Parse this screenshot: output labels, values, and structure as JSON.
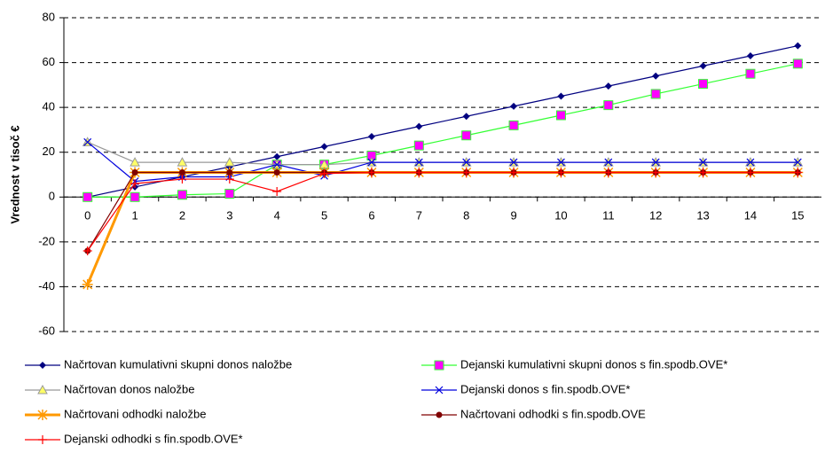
{
  "chart_data": {
    "type": "line",
    "y_label": "Vrednost v tisoč €",
    "categories": [
      "0",
      "1",
      "2",
      "3",
      "4",
      "5",
      "6",
      "7",
      "8",
      "9",
      "10",
      "11",
      "12",
      "13",
      "14",
      "15"
    ],
    "ylim": [
      -60,
      80
    ],
    "yticks": [
      -60,
      -40,
      -20,
      0,
      20,
      40,
      60,
      80
    ],
    "grid": true,
    "series": [
      {
        "name": "Načrtovan kumulativni skupni donos naložbe",
        "color": "#000080",
        "marker": "diamond",
        "values": [
          0,
          4.5,
          9,
          13.5,
          18,
          22.5,
          27,
          31.5,
          36,
          40.5,
          45,
          49.5,
          54,
          58.5,
          63,
          67.5
        ]
      },
      {
        "name": "Dejanski kumulativni skupni donos s fin.spodb.OVE*",
        "color": "#33ff33",
        "marker": "square",
        "marker_color": "#ff00ff",
        "values": [
          0,
          0,
          1,
          1.5,
          14.5,
          14.5,
          18.5,
          23,
          27.5,
          32,
          36.5,
          41,
          46,
          50.5,
          55,
          59.5
        ]
      },
      {
        "name": "Načrtovan donos naložbe",
        "color": "#999999",
        "marker": "triangle",
        "marker_color": "#ffff66",
        "values": [
          24.5,
          15.5,
          15.5,
          15.5,
          14.5,
          14.5,
          15.5,
          15.5,
          15.5,
          15.5,
          15.5,
          15.5,
          15.5,
          15.5,
          15.5,
          15.5
        ]
      },
      {
        "name": "Dejanski donos s fin.spodb.OVE*",
        "color": "#0000dd",
        "marker": "x",
        "values": [
          24.5,
          7,
          9,
          9,
          14.5,
          9.5,
          15.5,
          15.5,
          15.5,
          15.5,
          15.5,
          15.5,
          15.5,
          15.5,
          15.5,
          15.5
        ]
      },
      {
        "name": "Načrtovani odhodki naložbe",
        "color": "#ff9900",
        "marker": "asterisk",
        "width": 3,
        "values": [
          -39,
          11,
          11,
          11,
          11,
          11,
          11,
          11,
          11,
          11,
          11,
          11,
          11,
          11,
          11,
          11
        ]
      },
      {
        "name": "Načrtovani odhodki s fin.spodb.OVE",
        "color": "#800000",
        "marker": "circle",
        "values": [
          -24,
          11,
          11,
          11,
          11,
          11,
          11,
          11,
          11,
          11,
          11,
          11,
          11,
          11,
          11,
          11
        ]
      },
      {
        "name": "Dejanski odhodki s fin.spodb.OVE*",
        "color": "#ff0000",
        "marker": "plus",
        "values": [
          -24,
          6,
          8,
          8,
          2.5,
          10.5,
          11,
          11,
          11,
          11,
          11,
          11,
          11,
          11,
          11,
          11
        ]
      }
    ]
  }
}
